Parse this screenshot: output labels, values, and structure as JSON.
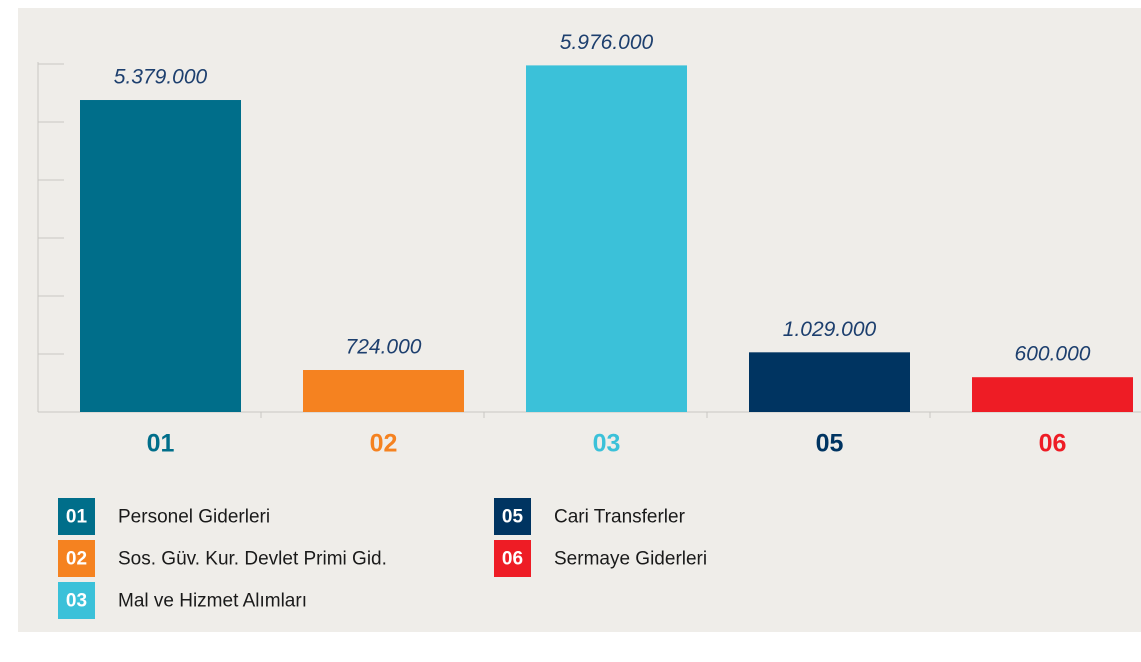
{
  "chart_data": {
    "type": "bar",
    "categories": [
      "01",
      "02",
      "03",
      "05",
      "06"
    ],
    "values": [
      5379000,
      724000,
      5976000,
      1029000,
      600000
    ],
    "value_labels": [
      "5.379.000",
      "724.000",
      "5.976.000",
      "1.029.000",
      "600.000"
    ],
    "colors": [
      "#006e8a",
      "#f58220",
      "#3bc1d9",
      "#003461",
      "#ee1c25"
    ],
    "names": [
      "Personel Giderleri",
      "Sos. Güv. Kur. Devlet Primi Gid.",
      "Mal ve Hizmet Alımları",
      "Cari Transferler",
      "Sermaye Giderleri"
    ],
    "ylim": [
      0,
      6000000
    ],
    "yticks": [
      0,
      1000000,
      2000000,
      3000000,
      4000000,
      5000000,
      6000000
    ]
  }
}
